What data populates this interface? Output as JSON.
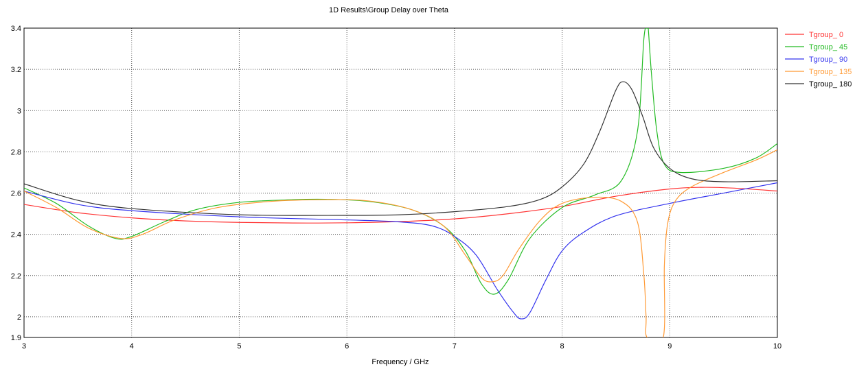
{
  "chart_data": {
    "type": "line",
    "title": "1D Results\\Group Delay over Theta",
    "xlabel": "Frequency / GHz",
    "ylabel": "",
    "xlim": [
      3,
      10
    ],
    "ylim": [
      1.9,
      3.4
    ],
    "xticks": [
      3,
      4,
      5,
      6,
      7,
      8,
      9,
      10
    ],
    "yticks": [
      1.9,
      2,
      2.2,
      2.4,
      2.6,
      2.8,
      3,
      3.2,
      3.4
    ],
    "ytick_labels": [
      "1.9",
      "2",
      "2.2",
      "2.4",
      "2.6",
      "2.8",
      "3",
      "3.2",
      "3.4"
    ],
    "grid": true,
    "legend_position": "right",
    "series": [
      {
        "name": "Tgroup_ 0",
        "color": "#ff3333",
        "x": [
          3,
          3.5,
          4,
          4.5,
          5,
          5.5,
          6,
          6.5,
          7,
          7.5,
          8,
          8.5,
          9,
          9.3,
          9.6,
          10
        ],
        "y": [
          2.545,
          2.505,
          2.48,
          2.465,
          2.458,
          2.455,
          2.456,
          2.462,
          2.475,
          2.5,
          2.535,
          2.585,
          2.62,
          2.628,
          2.624,
          2.61
        ]
      },
      {
        "name": "Tgroup_ 45",
        "color": "#22bb22",
        "x": [
          3,
          3.3,
          3.6,
          3.85,
          4,
          4.3,
          4.6,
          5,
          5.5,
          5.8,
          6.2,
          6.6,
          6.9,
          7.1,
          7.25,
          7.37,
          7.5,
          7.7,
          8,
          8.3,
          8.55,
          8.7,
          8.76,
          8.79,
          8.8,
          8.83,
          8.88,
          8.95,
          9.1,
          9.5,
          9.8,
          10
        ],
        "y": [
          2.625,
          2.55,
          2.44,
          2.38,
          2.39,
          2.46,
          2.52,
          2.555,
          2.568,
          2.57,
          2.56,
          2.52,
          2.44,
          2.32,
          2.16,
          2.11,
          2.18,
          2.38,
          2.53,
          2.59,
          2.66,
          2.9,
          3.35,
          3.4,
          3.4,
          3.18,
          2.9,
          2.74,
          2.7,
          2.72,
          2.77,
          2.84
        ]
      },
      {
        "name": "Tgroup_ 90",
        "color": "#3333ee",
        "x": [
          3,
          3.5,
          4,
          5,
          6,
          6.5,
          6.8,
          7,
          7.2,
          7.4,
          7.55,
          7.62,
          7.7,
          7.85,
          8,
          8.2,
          8.5,
          9,
          9.5,
          10
        ],
        "y": [
          2.61,
          2.545,
          2.515,
          2.485,
          2.47,
          2.46,
          2.44,
          2.39,
          2.3,
          2.13,
          2.02,
          1.99,
          2.02,
          2.18,
          2.32,
          2.41,
          2.49,
          2.55,
          2.6,
          2.65
        ]
      },
      {
        "name": "Tgroup_ 135",
        "color": "#ff9933",
        "x": [
          3,
          3.3,
          3.6,
          3.9,
          4.1,
          4.4,
          4.8,
          5.3,
          5.8,
          6.2,
          6.6,
          6.9,
          7.1,
          7.25,
          7.35,
          7.45,
          7.6,
          7.8,
          8,
          8.3,
          8.55,
          8.7,
          8.76,
          8.78,
          8.79,
          8.94,
          8.95,
          8.98,
          9.05,
          9.2,
          9.5,
          9.8,
          10
        ],
        "y": [
          2.61,
          2.53,
          2.43,
          2.38,
          2.4,
          2.47,
          2.53,
          2.56,
          2.568,
          2.562,
          2.52,
          2.44,
          2.3,
          2.19,
          2.17,
          2.2,
          2.33,
          2.47,
          2.55,
          2.58,
          2.56,
          2.46,
          2.2,
          2.0,
          1.9,
          1.9,
          2.25,
          2.45,
          2.56,
          2.63,
          2.7,
          2.76,
          2.81
        ]
      },
      {
        "name": "Tgroup_ 180",
        "color": "#333333",
        "x": [
          3,
          3.5,
          4,
          5,
          6,
          6.5,
          7,
          7.5,
          7.8,
          8,
          8.2,
          8.35,
          8.5,
          8.57,
          8.65,
          8.75,
          8.85,
          9,
          9.2,
          9.5,
          10
        ],
        "y": [
          2.645,
          2.565,
          2.525,
          2.495,
          2.492,
          2.495,
          2.51,
          2.535,
          2.57,
          2.63,
          2.74,
          2.9,
          3.1,
          3.14,
          3.1,
          2.97,
          2.82,
          2.72,
          2.67,
          2.655,
          2.66
        ]
      }
    ]
  }
}
